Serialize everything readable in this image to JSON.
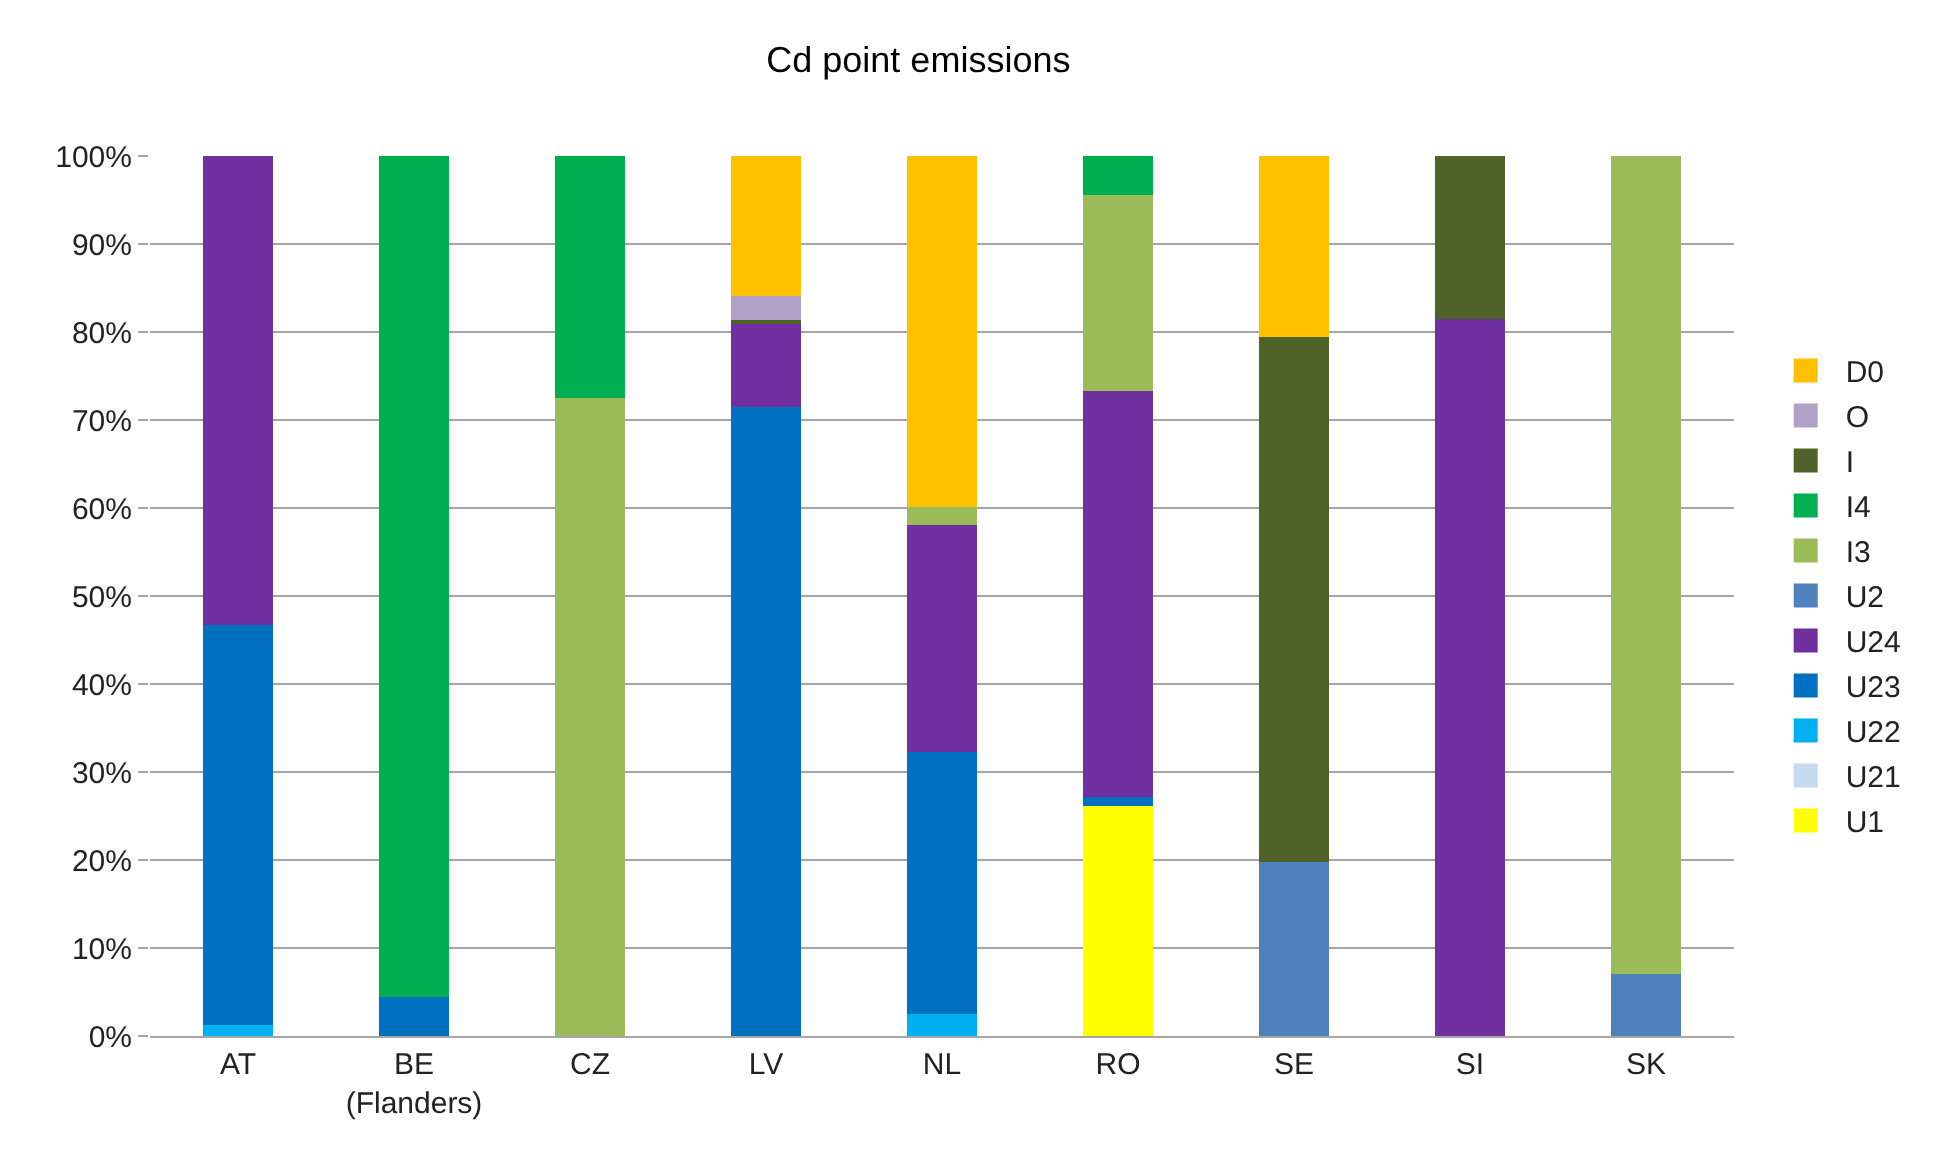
{
  "chart_data": {
    "type": "bar",
    "title": "Cd point emissions",
    "stacked": true,
    "categories": [
      "AT",
      "BE\n(Flanders)",
      "CZ",
      "LV",
      "NL",
      "RO",
      "SE",
      "SI",
      "SK"
    ],
    "series": [
      {
        "name": "U1",
        "color": "#ffff00",
        "values": [
          null,
          null,
          null,
          null,
          null,
          26.1,
          null,
          null,
          null
        ]
      },
      {
        "name": "U21",
        "color": "#c5d9f1",
        "values": [
          null,
          null,
          null,
          null,
          null,
          null,
          null,
          null,
          null
        ]
      },
      {
        "name": "U22",
        "color": "#00b0f0",
        "values": [
          1.3,
          null,
          null,
          null,
          2.5,
          null,
          null,
          null,
          null
        ]
      },
      {
        "name": "U23",
        "color": "#0070c0",
        "values": [
          45.4,
          4.4,
          null,
          71.5,
          29.8,
          1.1,
          null,
          null,
          null
        ]
      },
      {
        "name": "U24",
        "color": "#7030a0",
        "values": [
          53.3,
          null,
          null,
          9.6,
          25.8,
          46.1,
          null,
          81.5,
          null
        ]
      },
      {
        "name": "U2",
        "color": "#4f81bd",
        "values": [
          null,
          null,
          null,
          null,
          null,
          null,
          19.8,
          null,
          7.1
        ]
      },
      {
        "name": "I3",
        "color": "#9bbb59",
        "values": [
          null,
          null,
          72.5,
          null,
          2.0,
          22.3,
          null,
          null,
          92.9
        ]
      },
      {
        "name": "I4",
        "color": "#00b050",
        "values": [
          null,
          95.6,
          27.5,
          null,
          null,
          4.4,
          null,
          null,
          null
        ]
      },
      {
        "name": "I",
        "color": "#4f6228",
        "values": [
          null,
          null,
          null,
          0.3,
          null,
          null,
          59.6,
          18.5,
          null
        ]
      },
      {
        "name": "O",
        "color": "#b2a1c7",
        "values": [
          null,
          null,
          null,
          2.7,
          null,
          null,
          null,
          null,
          null
        ]
      },
      {
        "name": "D0",
        "color": "#ffc000",
        "values": [
          null,
          null,
          null,
          15.9,
          39.9,
          null,
          20.6,
          null,
          null
        ]
      }
    ],
    "ylim": [
      0,
      100
    ],
    "yticks": [
      {
        "value": 0,
        "label": "0%"
      },
      {
        "value": 10,
        "label": "10%"
      },
      {
        "value": 20,
        "label": "20%"
      },
      {
        "value": 30,
        "label": "30%"
      },
      {
        "value": 40,
        "label": "40%"
      },
      {
        "value": 50,
        "label": "50%"
      },
      {
        "value": 60,
        "label": "60%"
      },
      {
        "value": 70,
        "label": "70%"
      },
      {
        "value": 80,
        "label": "80%"
      },
      {
        "value": 90,
        "label": "90%"
      },
      {
        "value": 100,
        "label": "100%"
      }
    ],
    "grid": "y",
    "legend": "right"
  }
}
